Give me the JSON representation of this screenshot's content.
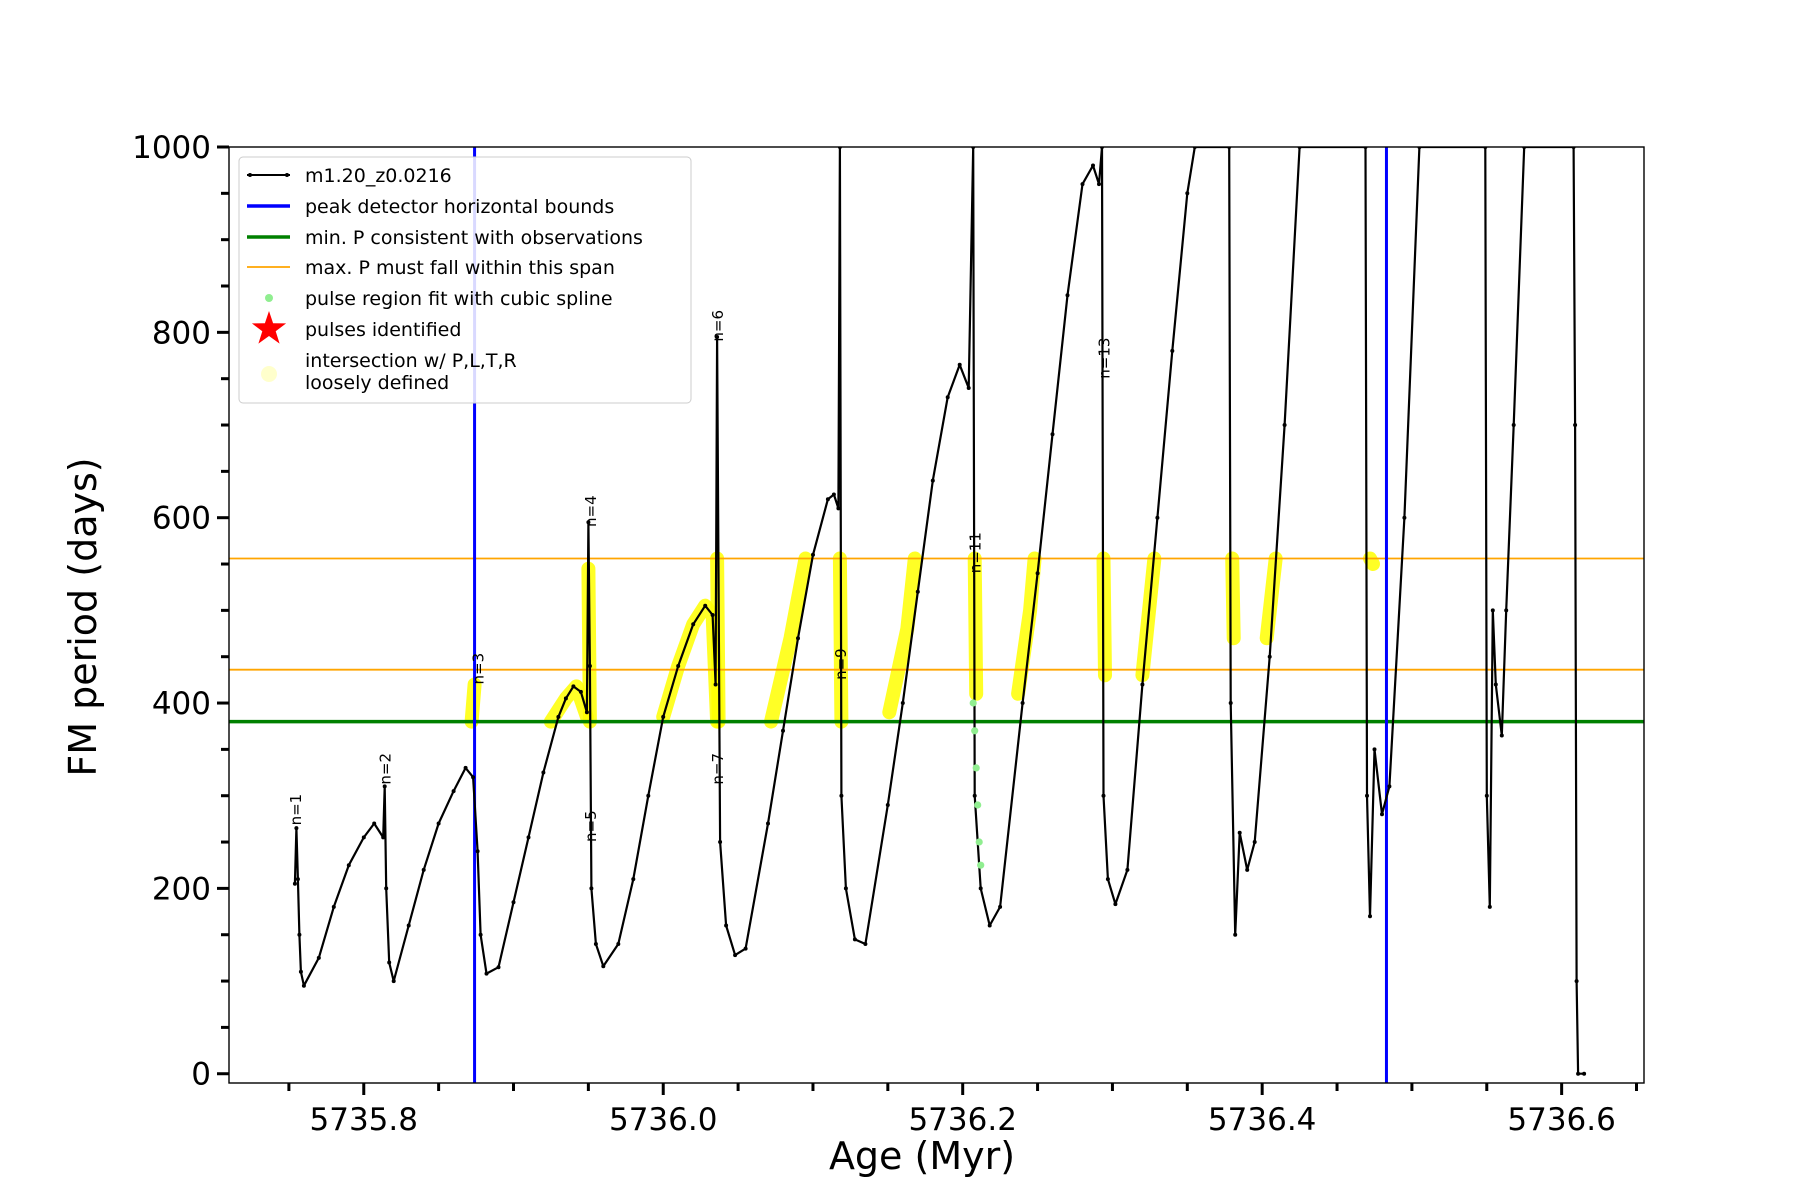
{
  "chart_data": {
    "type": "line",
    "xlabel": "Age (Myr)",
    "ylabel": "FM period (days)",
    "xlim": [
      5735.71,
      5736.655
    ],
    "ylim": [
      -10,
      1000
    ],
    "xticks": [
      5735.8,
      5736.0,
      5736.2,
      5736.4,
      5736.6
    ],
    "xtick_labels": [
      "5735.8",
      "5736.0",
      "5736.2",
      "5736.4",
      "5736.6"
    ],
    "yticks": [
      0,
      200,
      400,
      600,
      800,
      1000
    ],
    "ytick_labels": [
      "0",
      "200",
      "400",
      "600",
      "800",
      "1000"
    ],
    "legend": {
      "placement": "top-left",
      "entries": [
        {
          "label": "m1.20_z0.0216",
          "style": "line-marker",
          "color": "#000000"
        },
        {
          "label": "peak detector horizontal bounds",
          "style": "line",
          "color": "#0000ff"
        },
        {
          "label": "min. P consistent with observations",
          "style": "line",
          "color": "#008000"
        },
        {
          "label": "max. P must fall within this span",
          "style": "line",
          "color": "#ffa500"
        },
        {
          "label": "pulse region fit with cubic spline",
          "style": "dot",
          "color": "#90ee90"
        },
        {
          "label": "pulses identified",
          "style": "star",
          "color": "#ff0000"
        },
        {
          "label": "intersection w/ P,L,T,R",
          "label2": "loosely defined",
          "style": "dot",
          "color": "#ffffcc"
        }
      ]
    },
    "reference_lines": {
      "vertical_blue": [
        5735.874,
        5736.483
      ],
      "horizontal_green": 380,
      "horizontal_orange": [
        436,
        556
      ]
    },
    "series": [
      {
        "name": "m1.20_z0.0216",
        "color": "#000000",
        "points": [
          [
            5735.754,
            205
          ],
          [
            5735.755,
            265
          ],
          [
            5735.756,
            210
          ],
          [
            5735.757,
            150
          ],
          [
            5735.758,
            110
          ],
          [
            5735.76,
            95
          ],
          [
            5735.77,
            125
          ],
          [
            5735.78,
            180
          ],
          [
            5735.79,
            225
          ],
          [
            5735.8,
            255
          ],
          [
            5735.807,
            270
          ],
          [
            5735.813,
            255
          ],
          [
            5735.814,
            310
          ],
          [
            5735.815,
            200
          ],
          [
            5735.817,
            120
          ],
          [
            5735.82,
            100
          ],
          [
            5735.83,
            160
          ],
          [
            5735.84,
            220
          ],
          [
            5735.85,
            270
          ],
          [
            5735.86,
            305
          ],
          [
            5735.868,
            330
          ],
          [
            5735.873,
            320
          ],
          [
            5735.876,
            240
          ],
          [
            5735.878,
            150
          ],
          [
            5735.882,
            108
          ],
          [
            5735.89,
            115
          ],
          [
            5735.9,
            185
          ],
          [
            5735.91,
            255
          ],
          [
            5735.92,
            325
          ],
          [
            5735.93,
            385
          ],
          [
            5735.935,
            405
          ],
          [
            5735.94,
            418
          ],
          [
            5735.945,
            412
          ],
          [
            5735.949,
            390
          ],
          [
            5735.95,
            595
          ],
          [
            5735.951,
            440
          ],
          [
            5735.952,
            200
          ],
          [
            5735.955,
            140
          ],
          [
            5735.96,
            116
          ],
          [
            5735.97,
            140
          ],
          [
            5735.98,
            210
          ],
          [
            5735.99,
            300
          ],
          [
            5736.0,
            385
          ],
          [
            5736.01,
            440
          ],
          [
            5736.02,
            485
          ],
          [
            5736.028,
            505
          ],
          [
            5736.033,
            495
          ],
          [
            5736.035,
            420
          ],
          [
            5736.036,
            795
          ],
          [
            5736.038,
            250
          ],
          [
            5736.042,
            160
          ],
          [
            5736.048,
            128
          ],
          [
            5736.055,
            135
          ],
          [
            5736.07,
            270
          ],
          [
            5736.08,
            370
          ],
          [
            5736.09,
            470
          ],
          [
            5736.1,
            560
          ],
          [
            5736.11,
            620
          ],
          [
            5736.114,
            625
          ],
          [
            5736.117,
            610
          ],
          [
            5736.118,
            1000
          ],
          [
            5736.119,
            300
          ],
          [
            5736.122,
            200
          ],
          [
            5736.128,
            145
          ],
          [
            5736.135,
            140
          ],
          [
            5736.15,
            290
          ],
          [
            5736.16,
            400
          ],
          [
            5736.17,
            520
          ],
          [
            5736.18,
            640
          ],
          [
            5736.19,
            730
          ],
          [
            5736.198,
            765
          ],
          [
            5736.204,
            740
          ],
          [
            5736.207,
            1000
          ],
          [
            5736.208,
            300
          ],
          [
            5736.212,
            200
          ],
          [
            5736.218,
            160
          ],
          [
            5736.225,
            180
          ],
          [
            5736.24,
            400
          ],
          [
            5736.25,
            540
          ],
          [
            5736.26,
            690
          ],
          [
            5736.27,
            840
          ],
          [
            5736.28,
            960
          ],
          [
            5736.287,
            980
          ],
          [
            5736.291,
            960
          ],
          [
            5736.293,
            1000
          ],
          [
            5736.294,
            300
          ],
          [
            5736.297,
            210
          ],
          [
            5736.302,
            183
          ],
          [
            5736.31,
            220
          ],
          [
            5736.32,
            420
          ],
          [
            5736.33,
            600
          ],
          [
            5736.34,
            780
          ],
          [
            5736.35,
            950
          ],
          [
            5736.355,
            1000
          ],
          [
            5736.378,
            1000
          ],
          [
            5736.379,
            400
          ],
          [
            5736.382,
            150
          ],
          [
            5736.385,
            260
          ],
          [
            5736.39,
            220
          ],
          [
            5736.395,
            250
          ],
          [
            5736.405,
            450
          ],
          [
            5736.415,
            700
          ],
          [
            5736.425,
            1000
          ],
          [
            5736.469,
            1000
          ],
          [
            5736.47,
            300
          ],
          [
            5736.472,
            170
          ],
          [
            5736.475,
            350
          ],
          [
            5736.48,
            280
          ],
          [
            5736.485,
            310
          ],
          [
            5736.495,
            600
          ],
          [
            5736.505,
            1000
          ],
          [
            5736.549,
            1000
          ],
          [
            5736.55,
            300
          ],
          [
            5736.552,
            180
          ],
          [
            5736.554,
            500
          ],
          [
            5736.556,
            420
          ],
          [
            5736.56,
            365
          ],
          [
            5736.563,
            500
          ],
          [
            5736.568,
            700
          ],
          [
            5736.575,
            1000
          ],
          [
            5736.608,
            1000
          ],
          [
            5736.609,
            700
          ],
          [
            5736.61,
            100
          ],
          [
            5736.611,
            0
          ],
          [
            5736.615,
            0
          ]
        ]
      },
      {
        "name": "pulse region fit with cubic spline",
        "color": "#90ee90",
        "points": [
          [
            5736.207,
            400
          ],
          [
            5736.208,
            370
          ],
          [
            5736.209,
            330
          ],
          [
            5736.21,
            290
          ],
          [
            5736.211,
            250
          ],
          [
            5736.212,
            225
          ]
        ]
      }
    ],
    "yellow_segments": [
      [
        [
          5735.872,
          380
        ],
        [
          5735.874,
          420
        ]
      ],
      [
        [
          5735.925,
          380
        ],
        [
          5735.935,
          405
        ],
        [
          5735.942,
          418
        ],
        [
          5735.949,
          385
        ]
      ],
      [
        [
          5735.95,
          545
        ],
        [
          5735.951,
          380
        ]
      ],
      [
        [
          5736.0,
          385
        ],
        [
          5736.01,
          440
        ],
        [
          5736.02,
          485
        ],
        [
          5736.028,
          505
        ],
        [
          5736.033,
          495
        ],
        [
          5736.036,
          380
        ]
      ],
      [
        [
          5736.036,
          556
        ],
        [
          5736.037,
          380
        ]
      ],
      [
        [
          5736.072,
          380
        ],
        [
          5736.085,
          470
        ],
        [
          5736.095,
          556
        ]
      ],
      [
        [
          5736.118,
          556
        ],
        [
          5736.119,
          380
        ]
      ],
      [
        [
          5736.151,
          390
        ],
        [
          5736.163,
          480
        ],
        [
          5736.168,
          556
        ]
      ],
      [
        [
          5736.208,
          556
        ],
        [
          5736.209,
          410
        ]
      ],
      [
        [
          5736.237,
          410
        ],
        [
          5736.245,
          500
        ],
        [
          5736.248,
          556
        ]
      ],
      [
        [
          5736.294,
          556
        ],
        [
          5736.295,
          430
        ]
      ],
      [
        [
          5736.32,
          430
        ],
        [
          5736.328,
          556
        ]
      ],
      [
        [
          5736.38,
          556
        ],
        [
          5736.381,
          470
        ]
      ],
      [
        [
          5736.403,
          470
        ],
        [
          5736.409,
          556
        ]
      ],
      [
        [
          5736.472,
          556
        ],
        [
          5736.474,
          550
        ]
      ]
    ],
    "annotations": [
      {
        "text": "n=1",
        "x": 5735.758,
        "y": 268
      },
      {
        "text": "n=2",
        "x": 5735.818,
        "y": 312
      },
      {
        "text": "n=3",
        "x": 5735.88,
        "y": 420
      },
      {
        "text": "n=4",
        "x": 5735.955,
        "y": 590
      },
      {
        "text": "n=5",
        "x": 5735.955,
        "y": 250
      },
      {
        "text": "n=6",
        "x": 5736.04,
        "y": 790
      },
      {
        "text": "n=7",
        "x": 5736.04,
        "y": 312
      },
      {
        "text": "n=9",
        "x": 5736.122,
        "y": 425
      },
      {
        "text": "n=11",
        "x": 5736.212,
        "y": 540
      },
      {
        "text": "n=13",
        "x": 5736.298,
        "y": 750
      }
    ]
  }
}
